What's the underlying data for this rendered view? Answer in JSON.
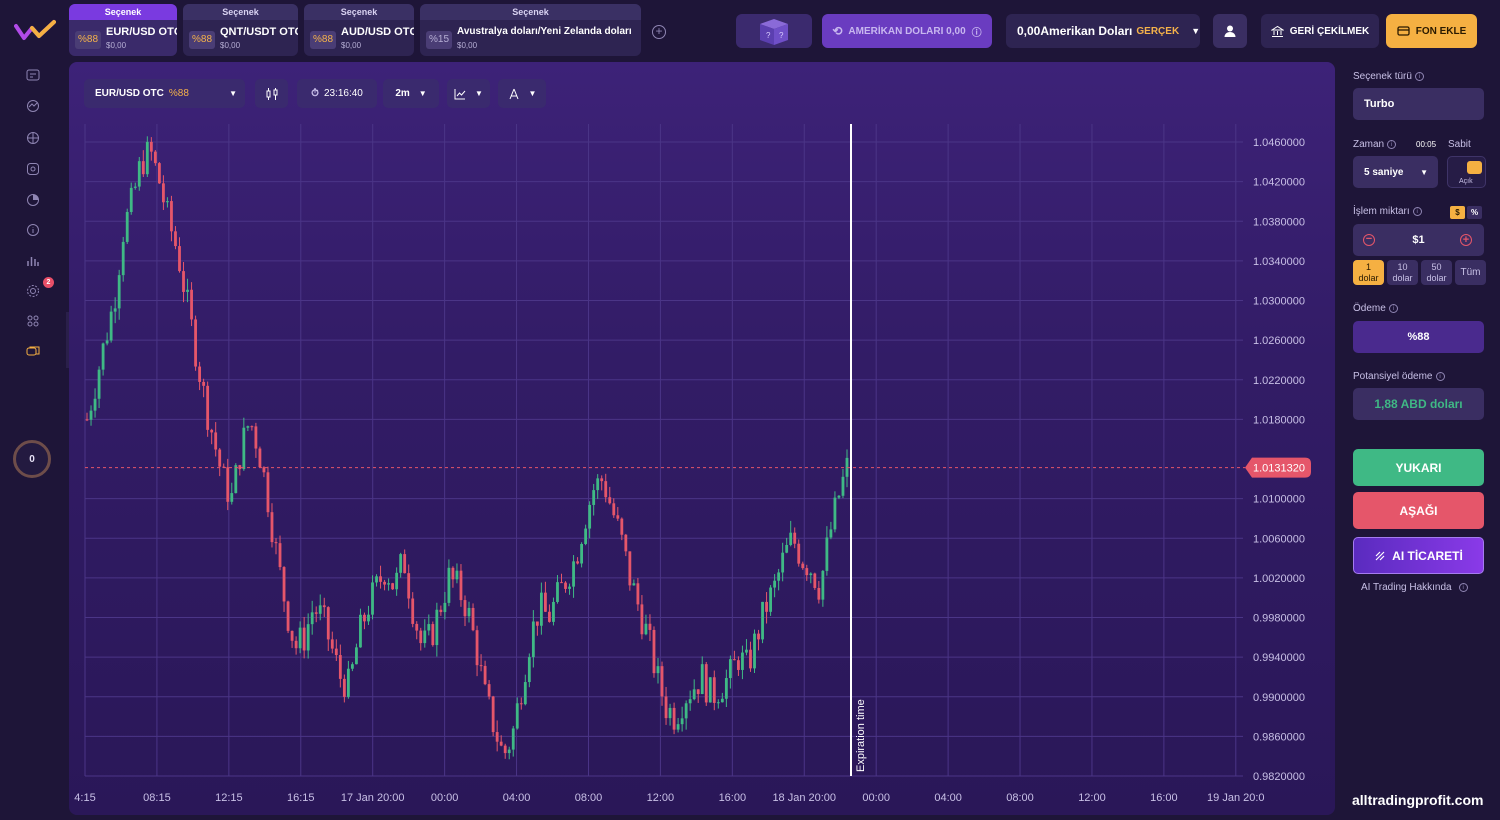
{
  "tabs": [
    {
      "header": "Seçenek",
      "pct": "%88",
      "name": "EUR/USD OTC",
      "balance": "$0,00",
      "active": true
    },
    {
      "header": "Seçenek",
      "pct": "%88",
      "name": "QNT/USDT OTC",
      "balance": "$0,00",
      "active": false
    },
    {
      "header": "Seçenek",
      "pct": "%88",
      "name": "AUD/USD OTC",
      "balance": "$0,00",
      "active": false
    },
    {
      "header": "Seçenek",
      "pct": "%15",
      "name": "Avustralya doları/Yeni Zelanda doları",
      "balance": "$0,00",
      "active": false
    }
  ],
  "header": {
    "demo_label": "AMERİKAN DOLARI 0,00",
    "balance_amount": "0,00Amerikan Doları",
    "balance_type": "GERÇEK",
    "withdraw_label": "GERİ ÇEKİLMEK",
    "deposit_label": "FON EKLE"
  },
  "sidebar": {
    "notification_count": "2",
    "level": "0"
  },
  "toolbar": {
    "asset": "EUR/USD OTC",
    "asset_pct": "%88",
    "time": "23:16:40",
    "timeframe": "2m"
  },
  "chart_data": {
    "type": "candlestick",
    "y_ticks": [
      "1.0460000",
      "1.0420000",
      "1.0380000",
      "1.0340000",
      "1.0300000",
      "1.0260000",
      "1.0220000",
      "1.0180000",
      "1.0100000",
      "1.0060000",
      "1.0020000",
      "0.9980000",
      "0.9940000",
      "0.9900000",
      "0.9860000",
      "0.9820000"
    ],
    "ylim": [
      0.982,
      1.046
    ],
    "x_ticks": [
      "4:15",
      "08:15",
      "12:15",
      "16:15",
      "17 Jan 20:00",
      "00:00",
      "04:00",
      "08:00",
      "12:00",
      "16:00",
      "18 Jan 20:00",
      "00:00",
      "04:00",
      "08:00",
      "12:00",
      "16:00",
      "19 Jan 20:0"
    ],
    "current_price": "1.0131320",
    "current_price_value": 1.013132,
    "expiration_label": "Expiration time",
    "close_path": [
      1.018,
      1.022,
      1.026,
      1.03,
      1.037,
      1.04,
      1.044,
      1.045,
      1.042,
      1.038,
      1.035,
      1.03,
      1.025,
      1.02,
      1.016,
      1.012,
      1.01,
      1.015,
      1.018,
      1.015,
      1.01,
      1.004,
      0.999,
      0.995,
      0.996,
      0.999,
      0.998,
      0.995,
      0.992,
      0.991,
      0.996,
      0.999,
      1.001,
      1.003,
      1.001,
      1.004,
      0.999,
      0.995,
      0.996,
      0.999,
      1.002,
      1.001,
      0.999,
      0.995,
      0.99,
      0.987,
      0.984,
      0.986,
      0.991,
      0.996,
      0.999,
      0.998,
      1.0,
      1.002,
      1.004,
      1.008,
      1.011,
      1.012,
      1.009,
      1.006,
      1.002,
      0.999,
      0.996,
      0.992,
      0.989,
      0.988,
      0.99,
      0.991,
      0.992,
      0.99,
      0.991,
      0.992,
      0.994,
      0.993,
      0.996,
      0.999,
      1.001,
      1.004,
      1.006,
      1.004,
      1.003,
      1.001,
      1.006,
      1.01,
      1.0131
    ]
  },
  "right_panel": {
    "option_type_label": "Seçenek türü",
    "option_type_value": "Turbo",
    "time_label": "Zaman",
    "time_countdown": "00:05",
    "fixed_label": "Sabit",
    "time_value": "5 saniye",
    "toggle_label": "Açık",
    "amount_label": "İşlem miktarı",
    "currency_symbol": "$",
    "percent_symbol": "%",
    "amount_value": "$1",
    "chips": [
      {
        "line1": "1",
        "line2": "dolar"
      },
      {
        "line1": "10",
        "line2": "dolar"
      },
      {
        "line1": "50",
        "line2": "dolar"
      },
      {
        "line1": "Tüm",
        "line2": ""
      }
    ],
    "payout_label": "Ödeme",
    "payout_value": "%88",
    "potential_label": "Potansiyel ödeme",
    "potential_value": "1,88 ABD doları",
    "up_label": "YUKARI",
    "down_label": "AŞAĞI",
    "ai_label": "AI TİCARETİ",
    "ai_about": "AI Trading Hakkında"
  },
  "watermark": "alltradingprofit.com",
  "colors": {
    "up": "#3fb985",
    "down": "#e5566a",
    "accent": "#7a3ae0",
    "gold": "#f5b042"
  }
}
